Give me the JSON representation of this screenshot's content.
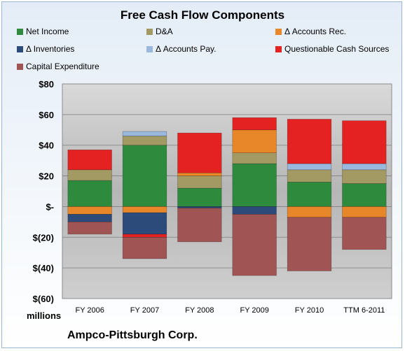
{
  "chart_data": {
    "type": "bar",
    "stacked": true,
    "title": "Free Cash Flow Components",
    "categories": [
      "FY 2006",
      "FY 2007",
      "FY 2008",
      "FY 2009",
      "FY 2010",
      "TTM 6-2011"
    ],
    "ylim": [
      -60,
      80
    ],
    "yticks": [
      80,
      60,
      40,
      20,
      0,
      -20,
      -40,
      -60
    ],
    "ytick_labels": [
      "$80",
      "$60",
      "$40",
      "$20",
      "$-",
      "$(20)",
      "$(40)",
      "$(60)"
    ],
    "ylabel": "millions",
    "grid": true,
    "legend_position": "top",
    "series": [
      {
        "name": "Net Income",
        "color": "#2e8b3e",
        "values": [
          17,
          40,
          12,
          28,
          16,
          15
        ]
      },
      {
        "name": "D&A",
        "color": "#a39a63",
        "values": [
          7,
          6,
          8,
          7,
          8,
          9
        ]
      },
      {
        "name": "Δ Accounts Rec.",
        "color": "#e8862a",
        "values": [
          -5,
          -4,
          2,
          15,
          -7,
          -7
        ]
      },
      {
        "name": "Δ Inventories",
        "color": "#2c4a7a",
        "values": [
          -5,
          -14,
          -1,
          -5,
          0,
          0
        ]
      },
      {
        "name": "Δ Accounts Pay.",
        "color": "#9ab7dd",
        "values": [
          0,
          3,
          0,
          0,
          4,
          4
        ]
      },
      {
        "name": "Questionable Cash Sources",
        "color": "#e52222",
        "values": [
          13,
          -2,
          26,
          8,
          29,
          28
        ]
      },
      {
        "name": "Capital Expenditure",
        "color": "#a05454",
        "values": [
          -8,
          -14,
          -22,
          -40,
          -35,
          -21
        ]
      }
    ]
  },
  "footer": {
    "units": "millions",
    "company": "Ampco-Pittsburgh Corp."
  }
}
